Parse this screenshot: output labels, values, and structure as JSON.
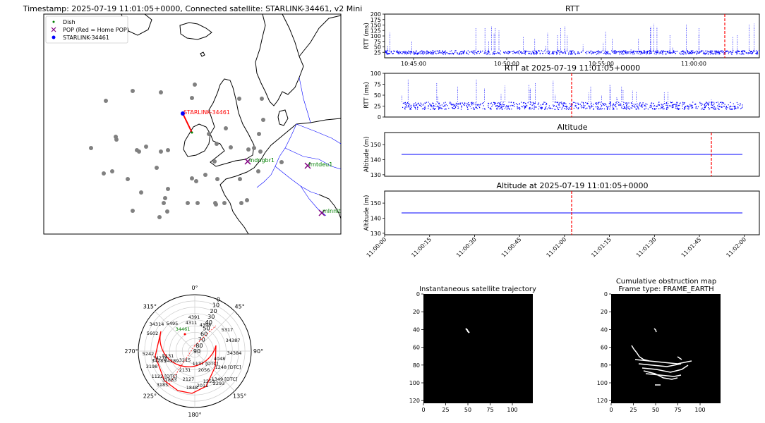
{
  "colors": {
    "dish": "#008000",
    "pop": "#800080",
    "satellite": "#0000ff",
    "trail": "#ff0000",
    "rtt": "#0000ff",
    "marker": "#ff0000",
    "sat_dot": "#808080",
    "border": "#0000ff"
  },
  "map": {
    "title": "Timestamp: 2025-07-19 11:01:05+0000, Connected satellite: STARLINK-34461, v2 Mini",
    "legend": {
      "dish": "Dish",
      "pop": "POP (Red = Home POP)",
      "satellite": "STARLINK-34461"
    },
    "satellite_label": "STARLINK-34461",
    "pops": [
      {
        "label": "lndngbr1",
        "color": "#008000"
      },
      {
        "label": "frntdeu1",
        "color": "#008000"
      },
      {
        "label": "mlnnita1",
        "color": "#008000"
      }
    ]
  },
  "chart_data": [
    {
      "type": "scatter",
      "title": "RTT",
      "ylabel": "RTT (ms)",
      "ylim": [
        0,
        200
      ],
      "yticks": [
        25,
        50,
        75,
        100,
        125,
        150,
        175,
        200
      ],
      "xticks": [
        "10:45:00",
        "10:50:00",
        "10:55:00",
        "11:00:00"
      ],
      "baseline_ms": [
        18,
        35
      ],
      "marker_time": "11:01:05"
    },
    {
      "type": "scatter",
      "title": "RTT at 2025-07-19 11:01:05+0000",
      "ylabel": "RTT (ms)",
      "ylim": [
        0,
        100
      ],
      "yticks": [
        0,
        25,
        50,
        75,
        100
      ],
      "baseline_ms": [
        18,
        35
      ],
      "marker_time": "11:01:05"
    },
    {
      "type": "line",
      "title": "Altitude",
      "ylabel": "Altitude (m)",
      "ylim": [
        129,
        158
      ],
      "yticks": [
        130,
        140,
        150
      ],
      "value": 143.5,
      "marker_time": "11:01:05"
    },
    {
      "type": "line",
      "title": "Altitude at 2025-07-19 11:01:05+0000",
      "ylabel": "Altitude (m)",
      "ylim": [
        129,
        158
      ],
      "yticks": [
        130,
        140,
        150
      ],
      "value": 143.5,
      "xticks": [
        "11:00:00",
        "11:00:15",
        "11:00:30",
        "11:00:45",
        "11:01:00",
        "11:01:15",
        "11:01:30",
        "11:01:45",
        "11:02:00"
      ],
      "marker_time": "11:01:05"
    },
    {
      "type": "scatter",
      "title": "",
      "polar": true,
      "angle_labels": [
        "0°",
        "45°",
        "90°",
        "135°",
        "180°",
        "225°",
        "270°",
        "315°"
      ],
      "radial_labels": [
        "0",
        "10",
        "20",
        "30",
        "40",
        "50",
        "60",
        "70",
        "80",
        "90"
      ],
      "satellite_labels": [
        "4391",
        "5495",
        "4311",
        "4398",
        "34314",
        "5602",
        "34461",
        "5317",
        "34387",
        "34384",
        "4048",
        "3215",
        "34289",
        "1137 [DTC]",
        "2131",
        "2056",
        "5131",
        "34278",
        "34285",
        "5242",
        "1122 [DTC]",
        "3198",
        "3185",
        "31883",
        "2127",
        "2293",
        "1848",
        "2011",
        "1253",
        "1248 [DTC]",
        "1349 [DTC]"
      ]
    },
    {
      "type": "heatmap",
      "title": "Instantaneous satellite trajectory",
      "xticks": [
        "0",
        "25",
        "50",
        "75",
        "100"
      ],
      "yticks": [
        "0",
        "20",
        "40",
        "60",
        "80",
        "100",
        "120"
      ]
    },
    {
      "type": "heatmap",
      "title": "Cumulative obstruction map\nFrame type: FRAME_EARTH",
      "title_line1": "Cumulative obstruction map",
      "title_line2": "Frame type: FRAME_EARTH",
      "xticks": [
        "0",
        "25",
        "50",
        "75",
        "100"
      ],
      "yticks": [
        "0",
        "20",
        "40",
        "60",
        "80",
        "100",
        "120"
      ]
    }
  ]
}
